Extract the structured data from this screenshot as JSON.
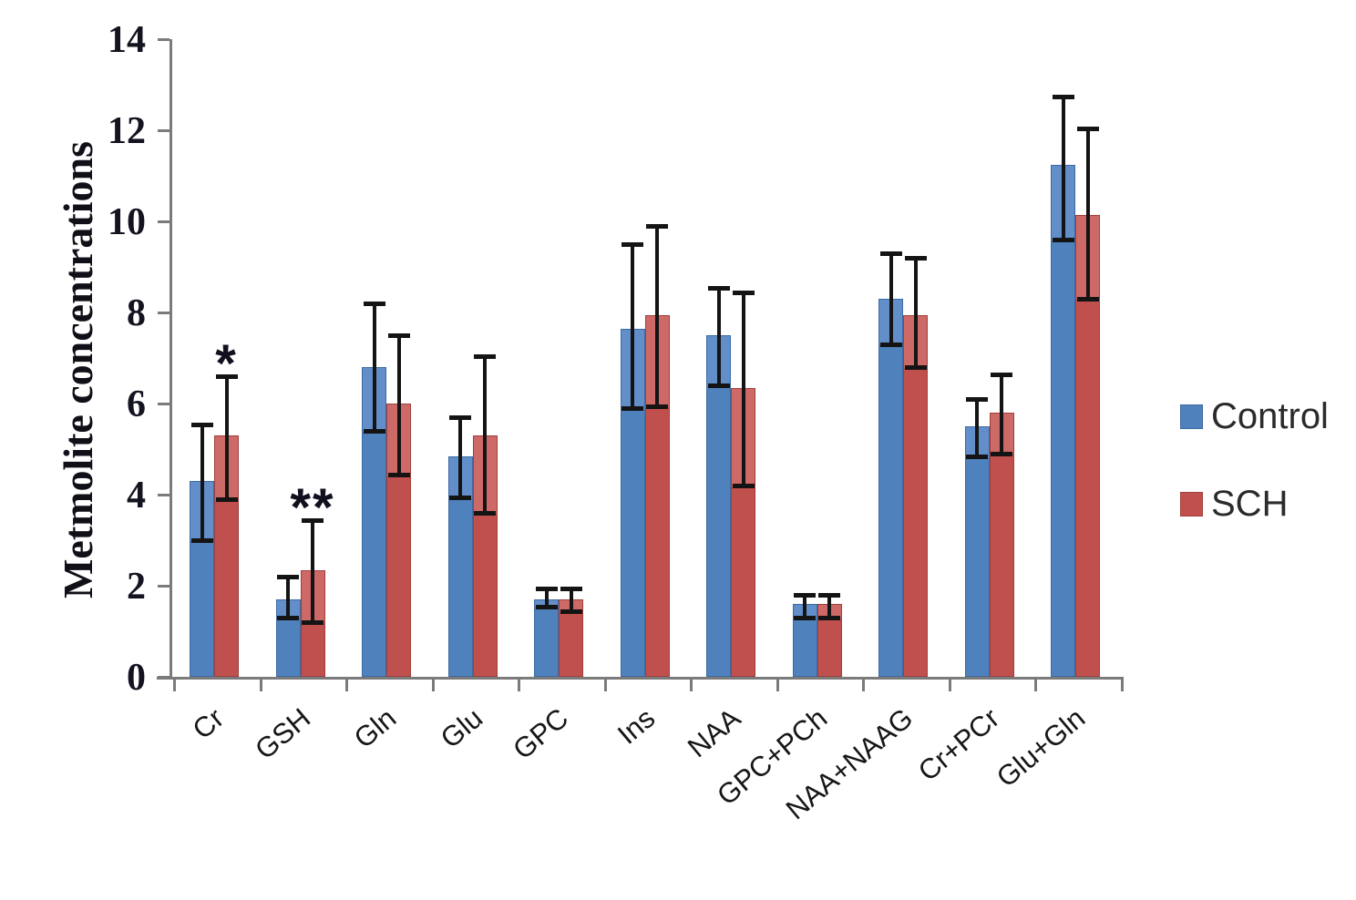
{
  "figure": {
    "background": "#ffffff",
    "accent_blue": "#4f81bd",
    "accent_red": "#c0504d",
    "axis_color": "#7b7b7b",
    "error_bar_color": "#141414"
  },
  "chart_data": {
    "type": "bar",
    "title": "",
    "xlabel": "",
    "ylabel": "Metmolite concentrations",
    "ylim": [
      0,
      14
    ],
    "yticks": [
      0,
      2,
      4,
      6,
      8,
      10,
      12,
      14
    ],
    "grid": false,
    "legend_position": "right-middle",
    "categories": [
      "Cr",
      "GSH",
      "Gln",
      "Glu",
      "GPC",
      "Ins",
      "NAA",
      "GPC+PCh",
      "NAA+NAAG",
      "Cr+PCr",
      "Glu+Gln"
    ],
    "series": [
      {
        "name": "Control",
        "color": "#4f81bd",
        "color_light": "#628fc9",
        "color_border": "#3c6ba3",
        "values": [
          4.3,
          1.7,
          6.8,
          4.85,
          1.7,
          7.65,
          7.5,
          1.6,
          8.3,
          5.5,
          11.25
        ],
        "error_low": [
          3.0,
          1.3,
          5.4,
          3.95,
          1.55,
          5.9,
          6.4,
          1.3,
          7.3,
          4.85,
          9.6
        ],
        "error_high": [
          5.55,
          2.2,
          8.2,
          5.7,
          1.95,
          9.5,
          8.55,
          1.8,
          9.3,
          6.1,
          12.75
        ]
      },
      {
        "name": "SCH",
        "color": "#c0504d",
        "color_light": "#cd6966",
        "color_border": "#a03f3d",
        "values": [
          5.3,
          2.35,
          6.0,
          5.3,
          1.7,
          7.95,
          6.35,
          1.6,
          7.95,
          5.8,
          10.15
        ],
        "error_low": [
          3.9,
          1.2,
          4.45,
          3.6,
          1.45,
          5.95,
          4.2,
          1.3,
          6.8,
          4.9,
          8.3
        ],
        "error_high": [
          6.6,
          3.45,
          7.5,
          7.05,
          1.95,
          9.9,
          8.45,
          1.8,
          9.2,
          6.65,
          12.05
        ]
      }
    ],
    "annotations": [
      {
        "category": "Cr",
        "series": "SCH",
        "text": "*",
        "y": 6.7
      },
      {
        "category": "GSH",
        "series": "SCH",
        "text": "**",
        "y": 3.55
      }
    ],
    "legend": [
      {
        "label": "Control",
        "color": "#4f81bd",
        "border": "#3c6ba3"
      },
      {
        "label": "SCH",
        "color": "#c0504d",
        "border": "#a03f3d"
      }
    ]
  }
}
